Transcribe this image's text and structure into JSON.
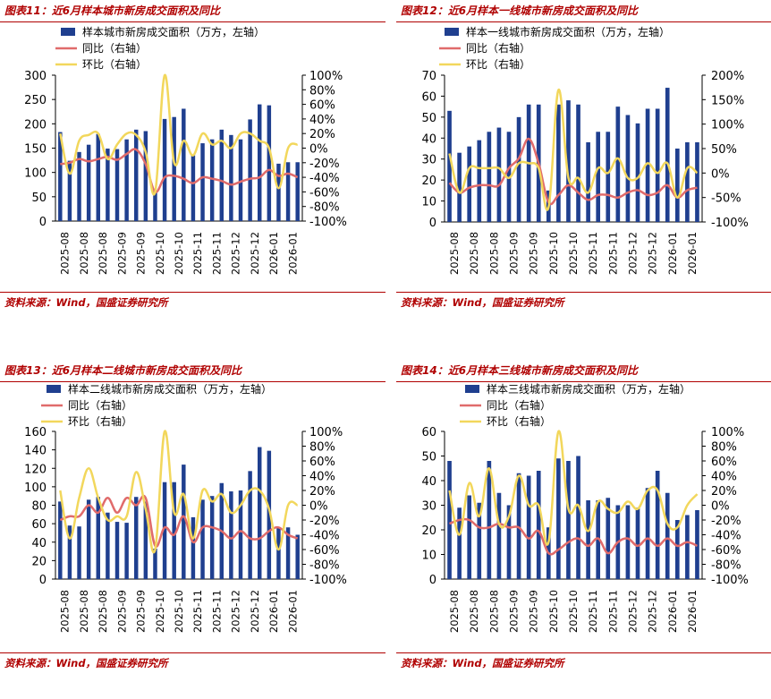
{
  "source_label": "资料来源：Wind，国盛证券研究所",
  "colors": {
    "bar": "#1f3f8f",
    "yoy": "#e06b6b",
    "mom": "#f2d75c",
    "title": "#b00000"
  },
  "chart_data": [
    {
      "type": "bar+line",
      "title": "图表11：近6月样本城市新房成交面积及同比",
      "legend": [
        "样本城市新房成交面积（万方，左轴）",
        "同比（右轴）",
        "环比（右轴）"
      ],
      "y_left": {
        "min": 0,
        "max": 300,
        "ticks": [
          0,
          50,
          100,
          150,
          200,
          250,
          300
        ]
      },
      "y_right": {
        "min": -100,
        "max": 100,
        "ticks": [
          "-100%",
          "-80%",
          "-60%",
          "-40%",
          "-20%",
          "0%",
          "20%",
          "40%",
          "60%",
          "80%",
          "100%"
        ]
      },
      "x_tick_labels": [
        "2025-08",
        "2025-08",
        "2025-08",
        "2025-09",
        "2025-09",
        "2025-10",
        "2025-10",
        "2025-11",
        "2025-11",
        "2025-12",
        "2025-12",
        "2026-01",
        "2026-01"
      ],
      "bars": [
        183,
        124,
        142,
        157,
        179,
        149,
        148,
        168,
        188,
        185,
        62,
        210,
        214,
        231,
        135,
        160,
        168,
        188,
        177,
        168,
        209,
        240,
        238,
        118,
        121,
        121
      ],
      "yoy": [
        -22,
        -20,
        -15,
        -18,
        -15,
        -12,
        -16,
        -8,
        -2,
        -22,
        -60,
        -40,
        -38,
        -42,
        -48,
        -40,
        -42,
        -45,
        -50,
        -46,
        -42,
        -40,
        -30,
        -38,
        -35,
        -40
      ],
      "mom": [
        20,
        -35,
        10,
        18,
        20,
        -15,
        5,
        20,
        18,
        -5,
        -60,
        100,
        -20,
        10,
        -10,
        20,
        5,
        10,
        0,
        20,
        20,
        10,
        0,
        -55,
        0,
        5
      ]
    },
    {
      "type": "bar+line",
      "title": "图表12：近6月样本一线城市新房成交面积及同比",
      "legend": [
        "样本一线城市新房成交面积（万方，左轴）",
        "同比（右轴）",
        "环比（右轴）"
      ],
      "y_left": {
        "min": 0,
        "max": 70,
        "ticks": [
          0,
          10,
          20,
          30,
          40,
          50,
          60,
          70
        ]
      },
      "y_right": {
        "min": -100,
        "max": 200,
        "ticks": [
          "-100%",
          "-50%",
          "0%",
          "50%",
          "100%",
          "150%",
          "200%"
        ]
      },
      "x_tick_labels": [
        "2025-08",
        "2025-08",
        "2025-08",
        "2025-09",
        "2025-09",
        "2025-10",
        "2025-10",
        "2025-11",
        "2025-11",
        "2025-12",
        "2025-12",
        "2026-01",
        "2026-01"
      ],
      "bars": [
        53,
        33,
        36,
        39,
        43,
        45,
        43,
        50,
        56,
        56,
        15,
        56,
        58,
        56,
        38,
        43,
        43,
        55,
        51,
        47,
        54,
        54,
        64,
        35,
        38,
        38
      ],
      "yoy": [
        -20,
        -40,
        -30,
        -25,
        -25,
        -25,
        10,
        30,
        70,
        20,
        -60,
        -45,
        -25,
        -40,
        -55,
        -45,
        -45,
        -50,
        -40,
        -35,
        -45,
        -40,
        -25,
        -50,
        -35,
        -30
      ],
      "mom": [
        40,
        -40,
        10,
        10,
        10,
        10,
        -10,
        20,
        20,
        10,
        -70,
        170,
        -10,
        -10,
        -40,
        10,
        0,
        30,
        -10,
        -10,
        20,
        0,
        20,
        -50,
        10,
        0
      ]
    },
    {
      "type": "bar+line",
      "title": "图表13：近6月样本二线城市新房成交面积及同比",
      "legend": [
        "样本二线城市新房成交面积（万方，左轴）",
        "同比（右轴）",
        "环比（右轴）"
      ],
      "y_left": {
        "min": 0,
        "max": 160,
        "ticks": [
          0,
          20,
          40,
          60,
          80,
          100,
          120,
          140,
          160
        ]
      },
      "y_right": {
        "min": -100,
        "max": 100,
        "ticks": [
          "-100%",
          "-80%",
          "-60%",
          "-40%",
          "-20%",
          "0%",
          "20%",
          "40%",
          "60%",
          "80%",
          "100%"
        ]
      },
      "x_tick_labels": [
        "2025-08",
        "2025-08",
        "2025-08",
        "2025-09",
        "2025-09",
        "2025-10",
        "2025-10",
        "2025-11",
        "2025-11",
        "2025-12",
        "2025-12",
        "2026-01",
        "2026-01"
      ],
      "bars": [
        84,
        58,
        57,
        86,
        89,
        72,
        62,
        61,
        89,
        84,
        33,
        105,
        105,
        124,
        67,
        86,
        90,
        104,
        95,
        96,
        117,
        143,
        139,
        56,
        56,
        48
      ],
      "yoy": [
        -20,
        -15,
        -15,
        0,
        -10,
        10,
        -10,
        10,
        0,
        10,
        -55,
        -30,
        -40,
        -15,
        -50,
        -30,
        -30,
        -35,
        -45,
        -35,
        -45,
        -45,
        -35,
        -30,
        -40,
        -45
      ],
      "mom": [
        20,
        -45,
        10,
        50,
        10,
        -20,
        -15,
        -15,
        45,
        -5,
        -60,
        100,
        -10,
        15,
        -45,
        20,
        5,
        15,
        -10,
        0,
        20,
        20,
        -5,
        -60,
        0,
        0
      ]
    },
    {
      "type": "bar+line",
      "title": "图表14：近6月样本三线城市新房成交面积及同比",
      "legend": [
        "样本三线城市新房成交面积（万方，左轴）",
        "同比（右轴）",
        "环比（右轴）"
      ],
      "y_left": {
        "min": 0,
        "max": 60,
        "ticks": [
          0,
          10,
          20,
          30,
          40,
          50,
          60
        ]
      },
      "y_right": {
        "min": -100,
        "max": 100,
        "ticks": [
          "-100%",
          "-80%",
          "-60%",
          "-40%",
          "-20%",
          "0%",
          "20%",
          "40%",
          "60%",
          "80%",
          "100%"
        ]
      },
      "x_tick_labels": [
        "2025-08",
        "2025-08",
        "2025-08",
        "2025-09",
        "2025-09",
        "2025-10",
        "2025-10",
        "2025-11",
        "2025-11",
        "2025-12",
        "2025-12",
        "2026-01",
        "2026-01"
      ],
      "bars": [
        48,
        29,
        34,
        31,
        48,
        35,
        30,
        43,
        42,
        44,
        21,
        49,
        48,
        50,
        32,
        32,
        33,
        30,
        30,
        29,
        37,
        44,
        35,
        24,
        26,
        28
      ],
      "yoy": [
        -25,
        -20,
        -20,
        -30,
        -30,
        -25,
        -30,
        -30,
        -45,
        -35,
        -65,
        -60,
        -50,
        -45,
        -55,
        -45,
        -65,
        -50,
        -45,
        -55,
        -45,
        -55,
        -45,
        -55,
        -50,
        -55
      ],
      "mom": [
        20,
        -40,
        30,
        -15,
        50,
        -25,
        -15,
        40,
        0,
        0,
        -50,
        100,
        -5,
        0,
        -35,
        5,
        -5,
        -10,
        5,
        -5,
        20,
        20,
        -25,
        -30,
        0,
        15
      ]
    }
  ]
}
